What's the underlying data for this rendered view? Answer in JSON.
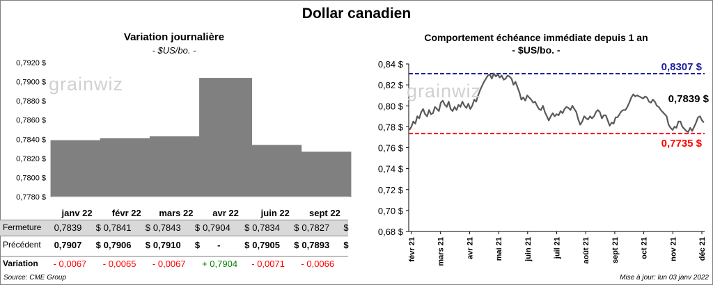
{
  "title": "Dollar canadien",
  "left": {
    "subtitle": "Variation  journalière",
    "unit": "- $US/bo. -",
    "watermark": "grainwiz",
    "rows": [
      {
        "label": "Fermeture",
        "values": [
          "0,7839",
          "0,7841",
          "0,7843",
          "0,7904",
          "0,7834",
          "0,7827"
        ]
      },
      {
        "label": "Précédent",
        "values": [
          "0,7907",
          "0,7906",
          "0,7910",
          "-",
          "0,7905",
          "0,7893"
        ]
      },
      {
        "label": "Variation",
        "values": [
          "- 0,0067",
          "- 0,0065",
          "- 0,0067",
          "+ 0,7904",
          "- 0,0071",
          "- 0,0066"
        ]
      }
    ],
    "currency_sign": "$",
    "colors": {
      "bar": "#808080",
      "negative": "#ff0000",
      "positive": "#008000",
      "row_shade": "#d9d9d9"
    }
  },
  "right": {
    "subtitle": "Comportement échéance immédiate depuis 1 an",
    "unit": "- $US/bo. -",
    "watermark": "grainwiz",
    "annotations": {
      "high": "0,8307 $",
      "low": "0,7735 $",
      "last": "0,7839 $"
    },
    "colors": {
      "high": "#1f1f9f",
      "low": "#ff0000",
      "line": "#595959"
    }
  },
  "footer": {
    "source": "Source: CME Group",
    "updated": "Mise à jour: lun 03 janv 2022"
  },
  "chart_data": [
    {
      "type": "bar",
      "title": "Variation  journalière",
      "categories": [
        "janv 22",
        "févr 22",
        "mars 22",
        "avr 22",
        "juin 22",
        "sept 22"
      ],
      "values": [
        0.7839,
        0.7841,
        0.7843,
        0.7904,
        0.7834,
        0.7827
      ],
      "ylim": [
        0.778,
        0.792
      ],
      "yticks": [
        "0,7780 $",
        "0,7800 $",
        "0,7820 $",
        "0,7840 $",
        "0,7860 $",
        "0,7880 $",
        "0,7900 $",
        "0,7920 $"
      ],
      "grid": false
    },
    {
      "type": "line",
      "title": "Comportement échéance immédiate depuis 1 an",
      "ylim": [
        0.68,
        0.84
      ],
      "yticks": [
        "0,68 $",
        "0,70 $",
        "0,72 $",
        "0,74 $",
        "0,76 $",
        "0,78 $",
        "0,80 $",
        "0,82 $",
        "0,84 $"
      ],
      "xticks": [
        "févr 21",
        "mars 21",
        "avr 21",
        "mai 21",
        "juin 21",
        "juil 21",
        "août 21",
        "sept 21",
        "oct 21",
        "nov 21",
        "déc 21"
      ],
      "reference_lines": [
        {
          "value": 0.8307
        },
        {
          "value": 0.7735
        }
      ],
      "points": [
        0.777,
        0.78,
        0.785,
        0.783,
        0.79,
        0.788,
        0.794,
        0.797,
        0.792,
        0.79,
        0.796,
        0.792,
        0.793,
        0.799,
        0.797,
        0.795,
        0.803,
        0.805,
        0.801,
        0.799,
        0.804,
        0.797,
        0.795,
        0.799,
        0.796,
        0.801,
        0.799,
        0.804,
        0.8,
        0.798,
        0.802,
        0.797,
        0.8,
        0.806,
        0.804,
        0.81,
        0.815,
        0.819,
        0.823,
        0.826,
        0.829,
        0.83,
        0.826,
        0.831,
        0.828,
        0.83,
        0.827,
        0.829,
        0.825,
        0.826,
        0.829,
        0.828,
        0.826,
        0.82,
        0.823,
        0.818,
        0.813,
        0.806,
        0.808,
        0.805,
        0.81,
        0.808,
        0.806,
        0.803,
        0.804,
        0.8,
        0.797,
        0.796,
        0.8,
        0.794,
        0.79,
        0.786,
        0.79,
        0.793,
        0.79,
        0.792,
        0.791,
        0.795,
        0.793,
        0.797,
        0.799,
        0.798,
        0.796,
        0.8,
        0.797,
        0.794,
        0.787,
        0.782,
        0.785,
        0.79,
        0.788,
        0.787,
        0.79,
        0.788,
        0.79,
        0.794,
        0.796,
        0.794,
        0.788,
        0.791,
        0.791,
        0.786,
        0.781,
        0.784,
        0.783,
        0.789,
        0.789,
        0.792,
        0.795,
        0.796,
        0.796,
        0.799,
        0.803,
        0.808,
        0.811,
        0.809,
        0.81,
        0.809,
        0.808,
        0.807,
        0.809,
        0.808,
        0.804,
        0.803,
        0.806,
        0.804,
        0.8,
        0.799,
        0.796,
        0.794,
        0.792,
        0.79,
        0.782,
        0.779,
        0.777,
        0.78,
        0.779,
        0.785,
        0.785,
        0.78,
        0.778,
        0.776,
        0.775,
        0.779,
        0.776,
        0.78,
        0.784,
        0.789,
        0.79,
        0.786,
        0.784
      ]
    }
  ]
}
